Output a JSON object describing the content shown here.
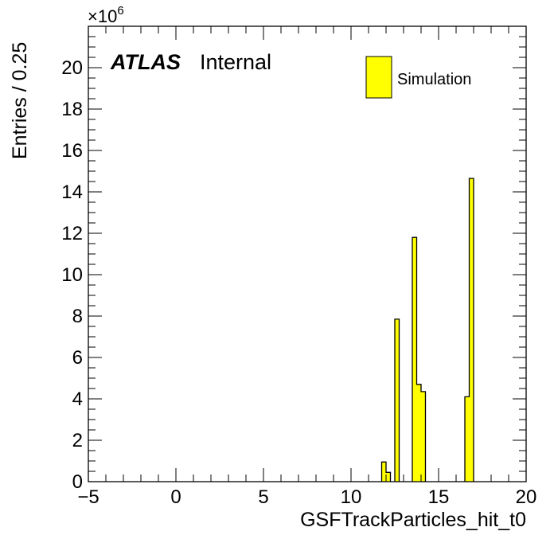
{
  "chart_data": {
    "type": "bar",
    "xlabel": "GSFTrackParticles_hit_t0",
    "ylabel": "Entries / 0.25",
    "xlim": [
      -5,
      20
    ],
    "ylim": [
      0,
      22
    ],
    "y_multiplier": "×10",
    "y_multiplier_exponent": "6",
    "bin_width": 0.25,
    "x_ticks": [
      -5,
      0,
      5,
      10,
      15,
      20
    ],
    "y_ticks": [
      0,
      2,
      4,
      6,
      8,
      10,
      12,
      14,
      16,
      18,
      20
    ],
    "series": [
      {
        "name": "Simulation",
        "color": "#ffff00",
        "bins": [
          {
            "x_low": 11.75,
            "x_high": 12.0,
            "value": 0.95
          },
          {
            "x_low": 12.0,
            "x_high": 12.25,
            "value": 0.45
          },
          {
            "x_low": 12.5,
            "x_high": 12.75,
            "value": 7.85
          },
          {
            "x_low": 13.5,
            "x_high": 13.75,
            "value": 11.8
          },
          {
            "x_low": 13.75,
            "x_high": 14.0,
            "value": 4.7
          },
          {
            "x_low": 14.0,
            "x_high": 14.25,
            "value": 4.35
          },
          {
            "x_low": 16.5,
            "x_high": 16.75,
            "value": 4.1
          },
          {
            "x_low": 16.75,
            "x_high": 17.0,
            "value": 14.65
          }
        ]
      }
    ]
  },
  "atlas_label": {
    "experiment": "ATLAS",
    "status": "Internal"
  }
}
